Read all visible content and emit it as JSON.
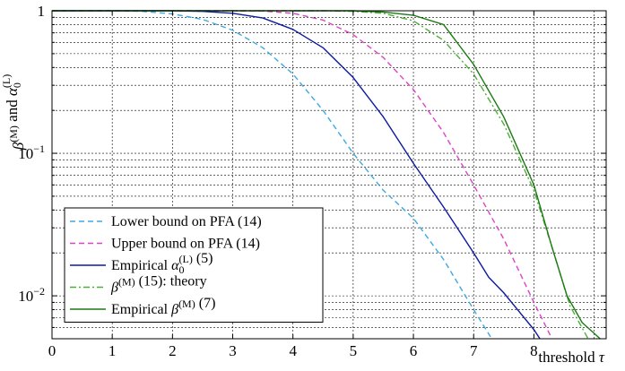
{
  "chart_data": {
    "type": "line",
    "xlabel": "threshold τ",
    "ylabel": "β(M) and α0(L)",
    "xlim": [
      0,
      9.2
    ],
    "ylim": [
      0.005,
      1
    ],
    "yscale": "log",
    "grid": true,
    "legend_position": "bottom-left",
    "x_ticks": [
      "0",
      "1",
      "2",
      "3",
      "4",
      "5",
      "6",
      "7",
      "8"
    ],
    "y_ticks": [
      {
        "value": 1,
        "base": "1",
        "exp": ""
      },
      {
        "value": 0.1,
        "base": "10",
        "exp": "−1"
      },
      {
        "value": 0.01,
        "base": "10",
        "exp": "−2"
      }
    ],
    "series": [
      {
        "name": "Lower bound on PFA (14)",
        "color": "#3fa9e0",
        "dash": "dashed",
        "x": [
          0,
          1,
          1.5,
          2,
          2.5,
          3,
          3.5,
          4,
          4.5,
          5,
          5.5,
          6,
          6.5,
          7,
          7.3
        ],
        "y": [
          1,
          1,
          0.99,
          0.95,
          0.87,
          0.73,
          0.55,
          0.36,
          0.2,
          0.1,
          0.055,
          0.035,
          0.018,
          0.008,
          0.005
        ]
      },
      {
        "name": "Upper bound on PFA (14)",
        "color": "#e040c8",
        "dash": "dashed",
        "x": [
          0,
          3,
          3.5,
          4,
          4.5,
          5,
          5.5,
          6,
          6.5,
          7,
          7.5,
          8,
          8.3
        ],
        "y": [
          1,
          1,
          0.995,
          0.96,
          0.86,
          0.68,
          0.47,
          0.28,
          0.14,
          0.06,
          0.025,
          0.009,
          0.005
        ]
      },
      {
        "name": "Empirical α0(L) (5)",
        "color": "#0b1aa0",
        "dash": "solid",
        "x": [
          0,
          2,
          2.5,
          3,
          3.5,
          4,
          4.5,
          5,
          5.5,
          6,
          6.5,
          7,
          7.25,
          7.5,
          7.75,
          8,
          8.1
        ],
        "y": [
          1,
          1,
          0.99,
          0.96,
          0.89,
          0.74,
          0.55,
          0.34,
          0.18,
          0.085,
          0.042,
          0.02,
          0.0135,
          0.0105,
          0.0078,
          0.0058,
          0.005
        ]
      },
      {
        "name": "β(M) (15): theory",
        "color": "#4caf3a",
        "dash": "dashdot",
        "x": [
          0,
          4.5,
          5,
          5.5,
          6,
          6.5,
          7,
          7.5,
          8,
          8.3,
          8.6,
          8.9
        ],
        "y": [
          1,
          1,
          0.99,
          0.96,
          0.85,
          0.62,
          0.36,
          0.16,
          0.055,
          0.022,
          0.0085,
          0.005
        ]
      },
      {
        "name": "Empirical β(M) (7)",
        "color": "#1c7a12",
        "dash": "solid",
        "x": [
          0,
          5,
          5.5,
          6,
          6.5,
          7,
          7.5,
          8,
          8.3,
          8.55,
          8.8,
          9.1
        ],
        "y": [
          1,
          1,
          0.98,
          0.93,
          0.8,
          0.42,
          0.18,
          0.06,
          0.022,
          0.01,
          0.0065,
          0.005
        ]
      }
    ]
  }
}
